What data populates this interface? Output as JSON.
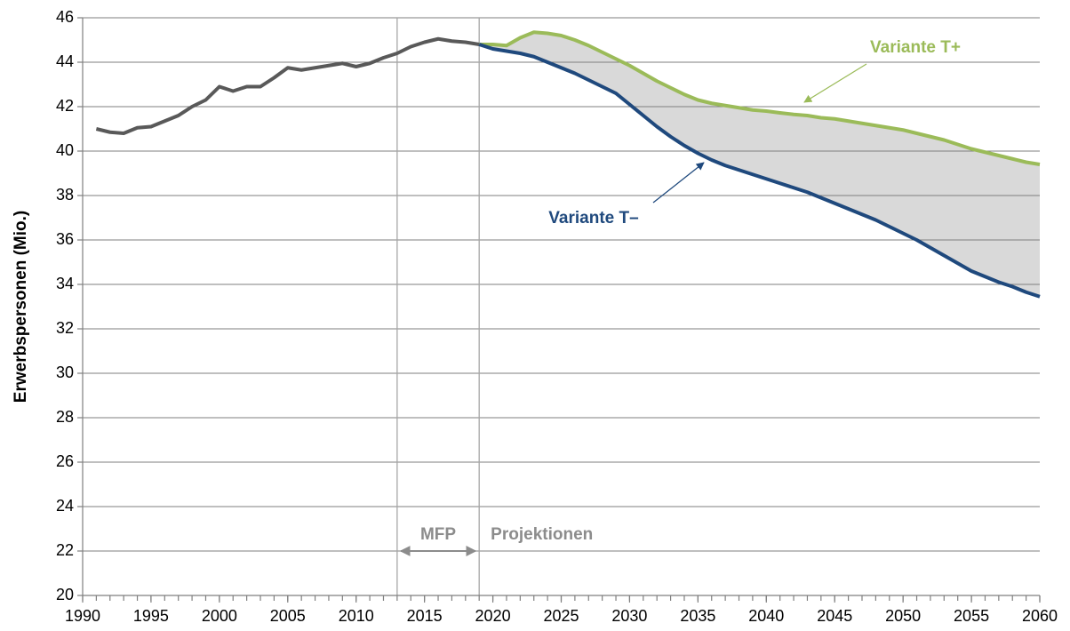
{
  "chart_data": {
    "type": "line",
    "ylabel": "Erwerbspersonen (Mio.)",
    "xlim": [
      1990,
      2060
    ],
    "xticks": [
      1990,
      1995,
      2000,
      2005,
      2010,
      2015,
      2020,
      2025,
      2030,
      2035,
      2040,
      2045,
      2050,
      2055,
      2060
    ],
    "ylim": [
      20,
      46
    ],
    "yticks": [
      20,
      22,
      24,
      26,
      28,
      30,
      32,
      34,
      36,
      38,
      40,
      42,
      44,
      46
    ],
    "grid": true,
    "vlines": [
      2013,
      2019
    ],
    "annotations": [
      "MFP",
      "Projektionen"
    ],
    "band_color": "#d9d9d9",
    "series": [
      {
        "color": "#595959",
        "x": [
          1991,
          1992,
          1993,
          1994,
          1995,
          1996,
          1997,
          1998,
          1999,
          2000,
          2001,
          2002,
          2003,
          2004,
          2005,
          2006,
          2007,
          2008,
          2009,
          2010,
          2011,
          2012,
          2013,
          2014,
          2015,
          2016,
          2017,
          2018,
          2019
        ],
        "values": [
          41.0,
          40.85,
          40.8,
          41.05,
          41.1,
          41.35,
          41.6,
          42.0,
          42.3,
          42.9,
          42.7,
          42.9,
          42.9,
          43.3,
          43.75,
          43.65,
          43.75,
          43.85,
          43.95,
          43.8,
          43.95,
          44.2,
          44.4,
          44.7,
          44.9,
          45.05,
          44.95,
          44.9,
          44.8
        ]
      },
      {
        "name": "Variante T+",
        "color": "#9bbb59",
        "x": [
          2019,
          2020,
          2021,
          2022,
          2023,
          2024,
          2025,
          2026,
          2027,
          2028,
          2029,
          2030,
          2031,
          2032,
          2033,
          2034,
          2035,
          2036,
          2037,
          2038,
          2039,
          2040,
          2041,
          2042,
          2043,
          2044,
          2045,
          2046,
          2047,
          2048,
          2049,
          2050,
          2051,
          2052,
          2053,
          2054,
          2055,
          2056,
          2057,
          2058,
          2059,
          2060
        ],
        "values": [
          44.8,
          44.8,
          44.75,
          45.1,
          45.35,
          45.3,
          45.2,
          45.0,
          44.75,
          44.45,
          44.15,
          43.85,
          43.5,
          43.15,
          42.85,
          42.55,
          42.3,
          42.15,
          42.05,
          41.95,
          41.85,
          41.8,
          41.72,
          41.65,
          41.6,
          41.5,
          41.45,
          41.35,
          41.25,
          41.15,
          41.05,
          40.95,
          40.8,
          40.65,
          40.5,
          40.3,
          40.1,
          39.95,
          39.8,
          39.65,
          39.5,
          39.4
        ]
      },
      {
        "name": "Variante T–",
        "color": "#1f497d",
        "x": [
          2019,
          2020,
          2021,
          2022,
          2023,
          2024,
          2025,
          2026,
          2027,
          2028,
          2029,
          2030,
          2031,
          2032,
          2033,
          2034,
          2035,
          2036,
          2037,
          2038,
          2039,
          2040,
          2041,
          2042,
          2043,
          2044,
          2045,
          2046,
          2047,
          2048,
          2049,
          2050,
          2051,
          2052,
          2053,
          2054,
          2055,
          2056,
          2057,
          2058,
          2059,
          2060
        ],
        "values": [
          44.8,
          44.6,
          44.5,
          44.4,
          44.25,
          44.0,
          43.75,
          43.5,
          43.2,
          42.9,
          42.6,
          42.1,
          41.6,
          41.1,
          40.65,
          40.25,
          39.9,
          39.6,
          39.35,
          39.15,
          38.95,
          38.75,
          38.55,
          38.35,
          38.15,
          37.9,
          37.65,
          37.4,
          37.15,
          36.9,
          36.6,
          36.3,
          36.0,
          35.65,
          35.3,
          34.95,
          34.6,
          34.35,
          34.1,
          33.9,
          33.65,
          33.45
        ]
      }
    ]
  }
}
